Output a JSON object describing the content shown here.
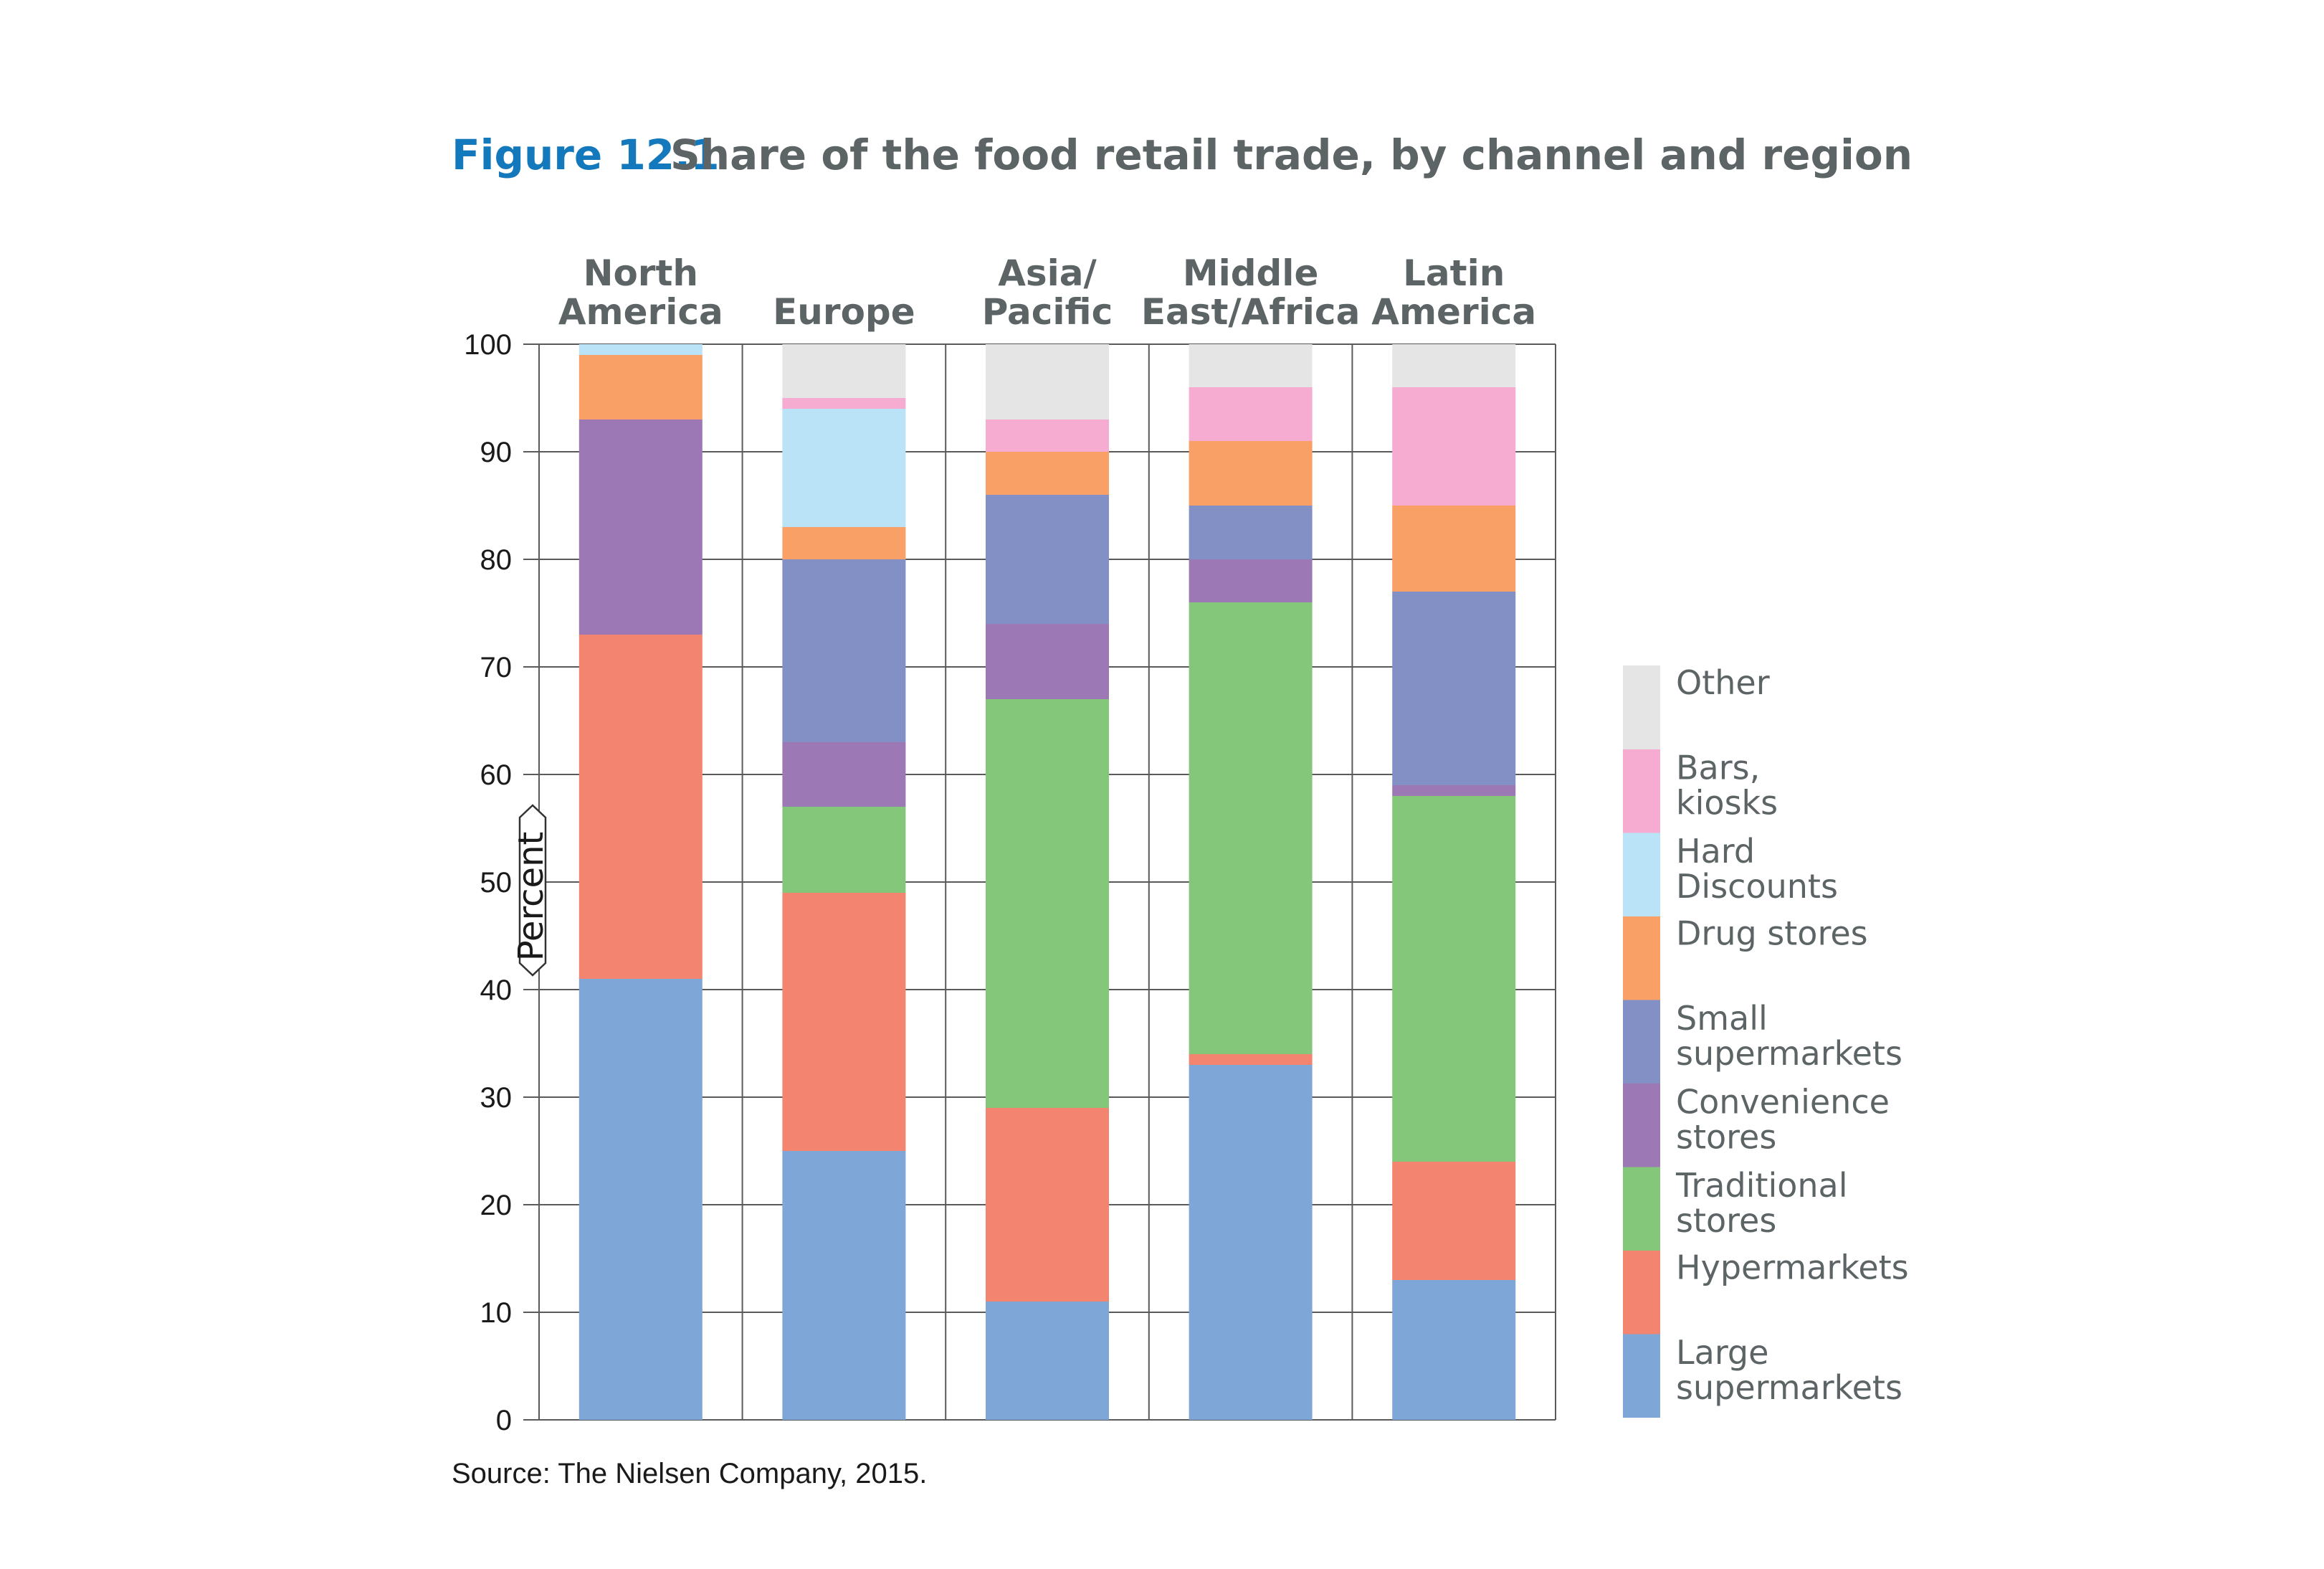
{
  "figure": {
    "label": "Figure 12.1",
    "title": "Share of the food retail trade, by channel and region",
    "source": "Source: The Nielsen Company, 2015."
  },
  "chart_data": {
    "type": "bar",
    "stacked": true,
    "title": "Share of the food retail trade, by channel and region",
    "ylabel": "Percent",
    "xlabel": "",
    "ylim": [
      0,
      100
    ],
    "yticks": [
      0,
      10,
      20,
      30,
      40,
      50,
      60,
      70,
      80,
      90,
      100
    ],
    "grid": true,
    "legend_position": "right",
    "categories": [
      [
        "North",
        "America"
      ],
      [
        "Europe"
      ],
      [
        "Asia/",
        "Pacific"
      ],
      [
        "Middle",
        "East/Africa"
      ],
      [
        "Latin",
        "America"
      ]
    ],
    "series": [
      {
        "name": [
          "Large",
          "supermarkets"
        ],
        "color": "#7ea7d8",
        "values": [
          41,
          25,
          11,
          33,
          13
        ]
      },
      {
        "name": [
          "Hypermarkets"
        ],
        "color": "#f28470",
        "values": [
          32,
          24,
          18,
          1,
          11
        ]
      },
      {
        "name": [
          "Traditional",
          "stores"
        ],
        "color": "#85c77a",
        "values": [
          0,
          8,
          38,
          42,
          34
        ]
      },
      {
        "name": [
          "Convenience",
          "stores"
        ],
        "color": "#9c78b5",
        "values": [
          20,
          6,
          7,
          4,
          1
        ]
      },
      {
        "name": [
          "Small",
          "supermarkets"
        ],
        "color": "#8390c6",
        "values": [
          0,
          17,
          12,
          5,
          18
        ]
      },
      {
        "name": [
          "Drug stores"
        ],
        "color": "#f8a065",
        "values": [
          6,
          3,
          4,
          6,
          8
        ]
      },
      {
        "name": [
          "Hard",
          "Discounts"
        ],
        "color": "#bae3f7",
        "values": [
          1,
          11,
          0,
          0,
          0
        ]
      },
      {
        "name": [
          "Bars,",
          "kiosks"
        ],
        "color": "#f5acd0",
        "values": [
          0,
          1,
          3,
          5,
          11
        ]
      },
      {
        "name": [
          "Other"
        ],
        "color": "#e6e5e5",
        "values": [
          0,
          5,
          7,
          4,
          4
        ]
      }
    ]
  }
}
